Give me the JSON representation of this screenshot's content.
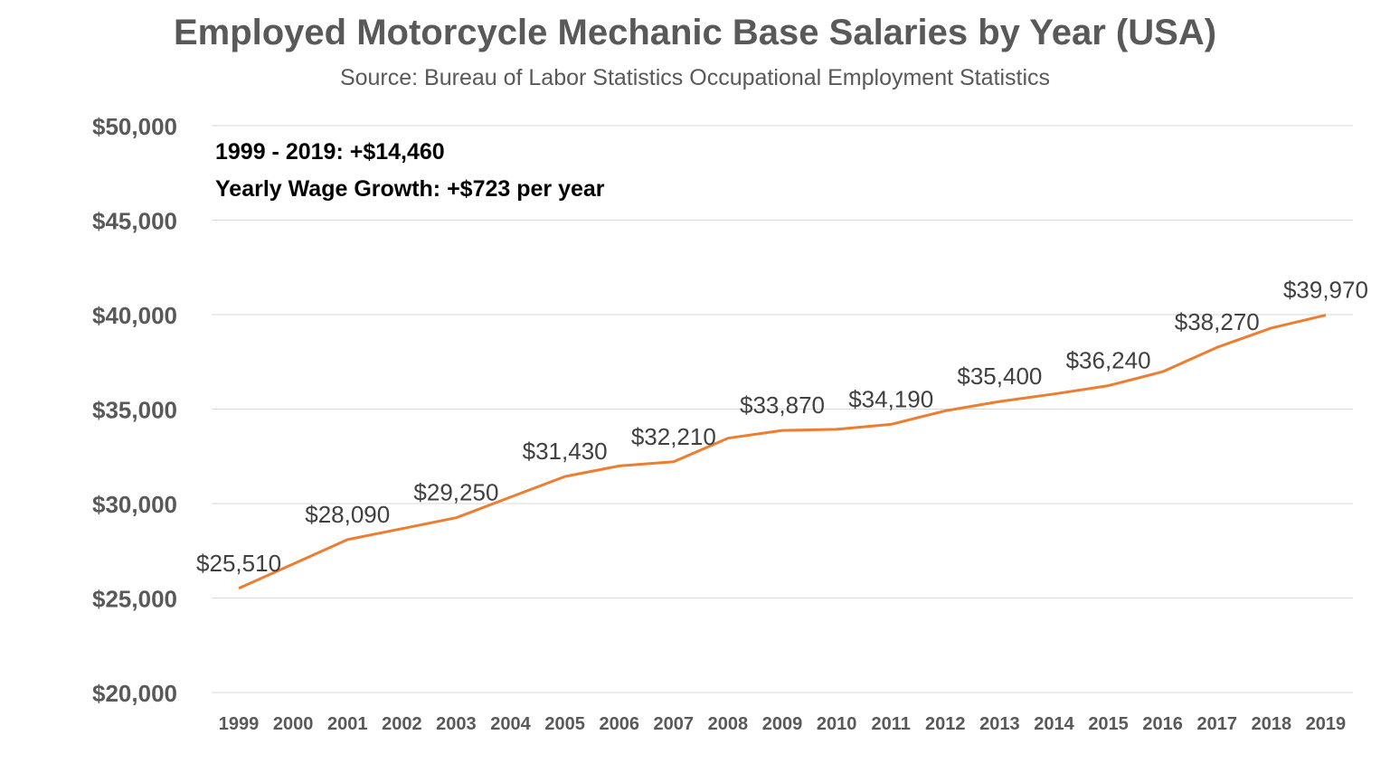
{
  "chart_data": {
    "type": "line",
    "title": "Employed Motorcycle Mechanic Base Salaries by Year (USA)",
    "subtitle": "Source: Bureau of Labor Statistics Occupational Employment Statistics",
    "xlabel": "",
    "ylabel": "",
    "ylim": [
      20000,
      50000
    ],
    "y_ticks": [
      20000,
      25000,
      30000,
      35000,
      40000,
      45000,
      50000
    ],
    "y_tick_labels": [
      "$20,000",
      "$25,000",
      "$30,000",
      "$35,000",
      "$40,000",
      "$45,000",
      "$50,000"
    ],
    "grid": true,
    "legend": "none",
    "line_color": "#ED7D31",
    "categories": [
      "1999",
      "2000",
      "2001",
      "2002",
      "2003",
      "2004",
      "2005",
      "2006",
      "2007",
      "2008",
      "2009",
      "2010",
      "2011",
      "2012",
      "2013",
      "2014",
      "2015",
      "2016",
      "2017",
      "2018",
      "2019"
    ],
    "series": [
      {
        "values": [
          25510,
          26800,
          28090,
          28670,
          29250,
          30340,
          31430,
          31990,
          32210,
          33460,
          33870,
          33930,
          34190,
          34910,
          35400,
          35800,
          36240,
          36980,
          38270,
          39290,
          39970
        ]
      }
    ],
    "data_labels": [
      {
        "category": "1999",
        "text": "$25,510"
      },
      {
        "category": "2001",
        "text": "$28,090"
      },
      {
        "category": "2003",
        "text": "$29,250"
      },
      {
        "category": "2005",
        "text": "$31,430"
      },
      {
        "category": "2007",
        "text": "$32,210"
      },
      {
        "category": "2009",
        "text": "$33,870"
      },
      {
        "category": "2011",
        "text": "$34,190"
      },
      {
        "category": "2013",
        "text": "$35,400"
      },
      {
        "category": "2015",
        "text": "$36,240"
      },
      {
        "category": "2017",
        "text": "$38,270"
      },
      {
        "category": "2019",
        "text": "$39,970"
      }
    ],
    "annotations": [
      "1999 - 2019:  +$14,460",
      "Yearly Wage Growth: +$723 per year"
    ]
  }
}
